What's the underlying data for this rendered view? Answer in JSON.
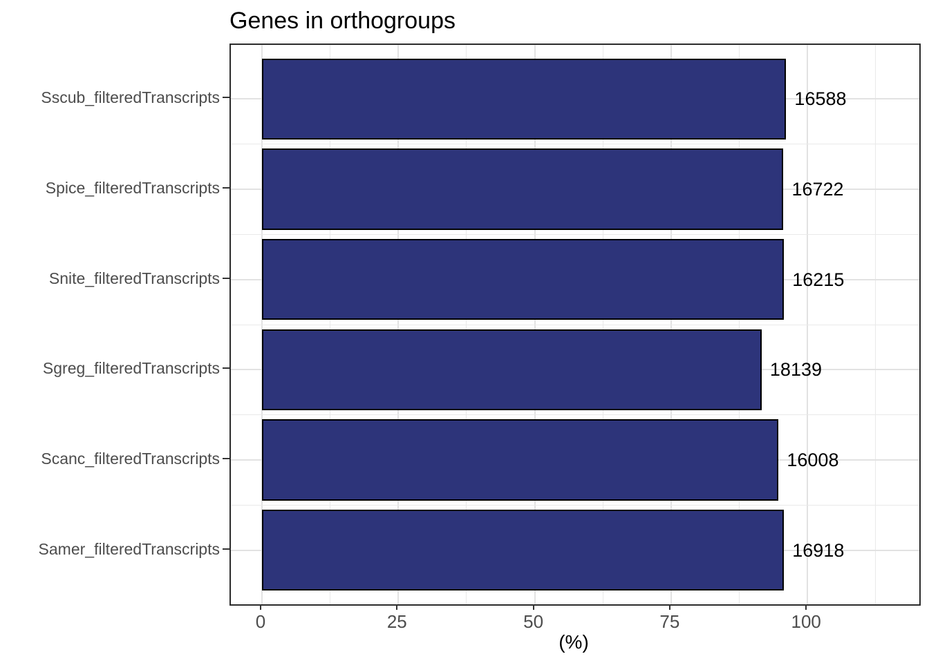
{
  "chart_data": {
    "type": "bar",
    "orientation": "horizontal",
    "title": "Genes in orthogroups",
    "xlabel": "(%)",
    "ylabel": "",
    "categories": [
      "Sscub_filteredTranscripts",
      "Spice_filteredTranscripts",
      "Snite_filteredTranscripts",
      "Sgreg_filteredTranscripts",
      "Scanc_filteredTranscripts",
      "Samer_filteredTranscripts"
    ],
    "values": [
      96.1,
      95.6,
      95.7,
      91.6,
      94.7,
      95.7
    ],
    "bar_labels": [
      "16588",
      "16722",
      "16215",
      "18139",
      "16008",
      "16918"
    ],
    "xlim": [
      -5.7,
      120.5
    ],
    "xticks": [
      0,
      25,
      50,
      75,
      100
    ],
    "xtick_labels": [
      "0",
      "25",
      "50",
      "75",
      "100"
    ],
    "xticks_minor": [
      12.5,
      37.5,
      62.5,
      87.5,
      112.5
    ],
    "grid": "major+minor",
    "legend": "none",
    "bar_width_fraction": 0.9,
    "y_positions_expanded_range": [
      0.4,
      6.6
    ],
    "colors": {
      "bar_fill": "#2d347a",
      "bar_stroke": "#000000",
      "grid_major": "#e2e2e2",
      "grid_minor": "#e9e9e9",
      "panel_border": "#2b2b2b",
      "axis_text": "#4d4d4d",
      "value_text": "#000000",
      "title_text": "#000000",
      "tick_mark": "#333333",
      "background": "#ffffff"
    }
  }
}
